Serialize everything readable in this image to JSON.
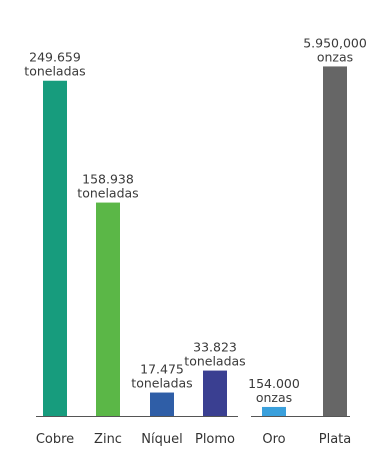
{
  "chart_data": {
    "type": "bar",
    "scale_note": "two independent scales: toneladas group and onzas group",
    "groups": [
      {
        "unit": "toneladas",
        "axis_max": 280000,
        "items": [
          {
            "category": "Cobre",
            "value": 249659,
            "label_value": "249.659",
            "label_unit": "toneladas",
            "color": "#179c7d"
          },
          {
            "category": "Zinc",
            "value": 158938,
            "label_value": "158.938",
            "label_unit": "toneladas",
            "color": "#5bb747"
          },
          {
            "category": "Níquel",
            "value": 17475,
            "label_value": "17.475",
            "label_unit": "toneladas",
            "color": "#2f5ea7"
          },
          {
            "category": "Plomo",
            "value": 33823,
            "label_value": "33.823",
            "label_unit": "toneladas",
            "color": "#3a3f91"
          }
        ]
      },
      {
        "unit": "onzas",
        "axis_max": 6400000,
        "items": [
          {
            "category": "Oro",
            "value": 154000,
            "label_value": "154.000",
            "label_unit": "onzas",
            "color": "#3aa0dc"
          },
          {
            "category": "Plata",
            "value": 5950000,
            "label_value": "5.950,000",
            "label_unit": "onzas",
            "color": "#666666"
          }
        ]
      }
    ],
    "axis_color": "#555555"
  }
}
